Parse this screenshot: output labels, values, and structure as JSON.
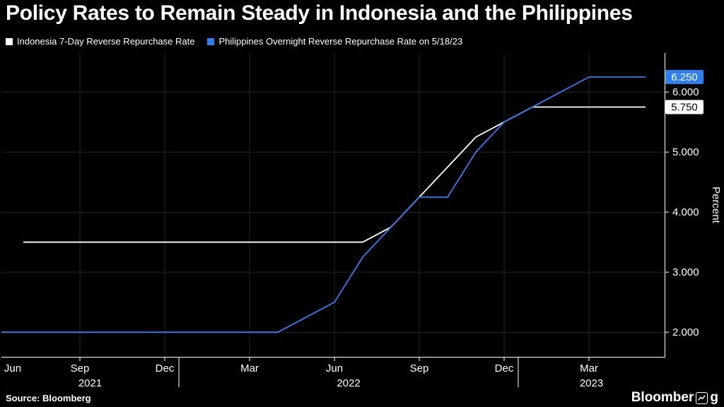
{
  "title": "Policy Rates to Remain Steady in Indonesia and the Philippines",
  "legend": [
    {
      "label": "Indonesia 7-Day Reverse Repurchase Rate",
      "color": "#ffffff"
    },
    {
      "label": "Philippines Overnight Reverse Repurchase Rate on 5/18/23",
      "color": "#2d7ff2"
    }
  ],
  "source": "Source: Bloomberg",
  "logo": {
    "pre": "Bloomber",
    "post": "g"
  },
  "chart_data": {
    "type": "line",
    "title": "Policy Rates to Remain Steady in Indonesia and the Philippines",
    "xlabel": "",
    "ylabel": "Percent",
    "ylim": [
      1.59,
      6.65
    ],
    "grid": true,
    "legend_position": "top-left",
    "background": "#000000",
    "axis_color": "#ffffff",
    "grid_color": "#262626",
    "yticks": [
      {
        "value": 2,
        "label": "2.000"
      },
      {
        "value": 3,
        "label": "3.000"
      },
      {
        "value": 4,
        "label": "4.000"
      },
      {
        "value": 5,
        "label": "5.000"
      },
      {
        "value": 6,
        "label": "6.000"
      }
    ],
    "xticks": [
      {
        "date": "2021-06",
        "label": "Jun"
      },
      {
        "date": "2021-09",
        "label": "Sep"
      },
      {
        "date": "2021-12",
        "label": "Dec"
      },
      {
        "date": "2022-03",
        "label": "Mar"
      },
      {
        "date": "2022-06",
        "label": "Jun"
      },
      {
        "date": "2022-09",
        "label": "Sep"
      },
      {
        "date": "2022-12",
        "label": "Dec"
      },
      {
        "date": "2023-03",
        "label": "Mar"
      }
    ],
    "year_dividers": [
      "2022-01",
      "2023-01"
    ],
    "years": [
      "2021",
      "2022",
      "2023"
    ],
    "series": [
      {
        "name": "Indonesia 7-Day Reverse Repurchase Rate",
        "color": "#ffffff",
        "points": [
          [
            "2021-07",
            3.5
          ],
          [
            "2022-07",
            3.5
          ],
          [
            "2022-08",
            3.75
          ],
          [
            "2022-09",
            4.25
          ],
          [
            "2022-10",
            4.75
          ],
          [
            "2022-11",
            5.25
          ],
          [
            "2022-12",
            5.5
          ],
          [
            "2023-01",
            5.75
          ],
          [
            "2023-05",
            5.75
          ]
        ]
      },
      {
        "name": "Philippines Overnight Reverse Repurchase Rate on 5/18/23",
        "color": "#2d7ff2",
        "points": [
          [
            "2021-06",
            2.0
          ],
          [
            "2022-04",
            2.0
          ],
          [
            "2022-05",
            2.25
          ],
          [
            "2022-06",
            2.5
          ],
          [
            "2022-07",
            3.25
          ],
          [
            "2022-08",
            3.75
          ],
          [
            "2022-09",
            4.25
          ],
          [
            "2022-10",
            4.25
          ],
          [
            "2022-11",
            5.0
          ],
          [
            "2022-12",
            5.5
          ],
          [
            "2023-02",
            6.0
          ],
          [
            "2023-03",
            6.25
          ],
          [
            "2023-05",
            6.25
          ]
        ]
      }
    ],
    "end_labels": [
      {
        "label": "6.250",
        "value": 6.25,
        "bg": "#2d7ff2",
        "fg": "#ffffff"
      },
      {
        "label": "5.750",
        "value": 5.75,
        "bg": "#ffffff",
        "fg": "#000000"
      }
    ]
  }
}
